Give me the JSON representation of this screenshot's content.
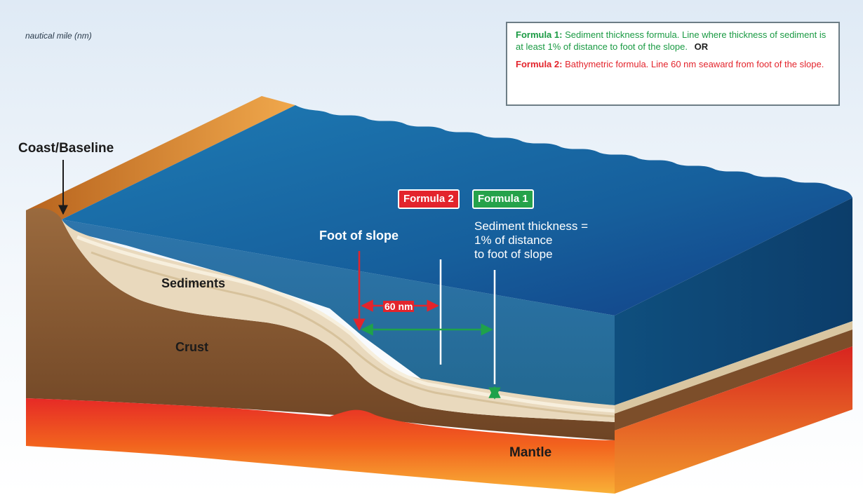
{
  "subtitle": "nautical mile (nm)",
  "legend": {
    "formula1_heading": "Formula 1:",
    "formula1_text": "Sediment thickness formula. Line where thickness of sediment is at least 1% of distance to foot of the slope.",
    "or_text": "OR",
    "formula2_heading": "Formula 2:",
    "formula2_text": "Bathymetric formula. Line 60 nm seaward from foot of the slope."
  },
  "labels": {
    "coast_baseline": "Coast/Baseline",
    "sediments": "Sediments",
    "crust": "Crust",
    "mantle": "Mantle",
    "foot_of_slope": "Foot of slope",
    "sediment_thickness": [
      "Sediment thickness =",
      "1% of distance",
      "to foot of slope"
    ],
    "sixty_nm": "60 nm",
    "formula2_badge": "Formula 2",
    "formula1_badge": "Formula 1"
  },
  "colors": {
    "formula1": "#1a9a43",
    "formula2": "#e3242c",
    "ocean": "#1c5f9b",
    "sediment": "#e9d9bd",
    "crust": "#8a5a32",
    "mantle": "#e0342a"
  }
}
